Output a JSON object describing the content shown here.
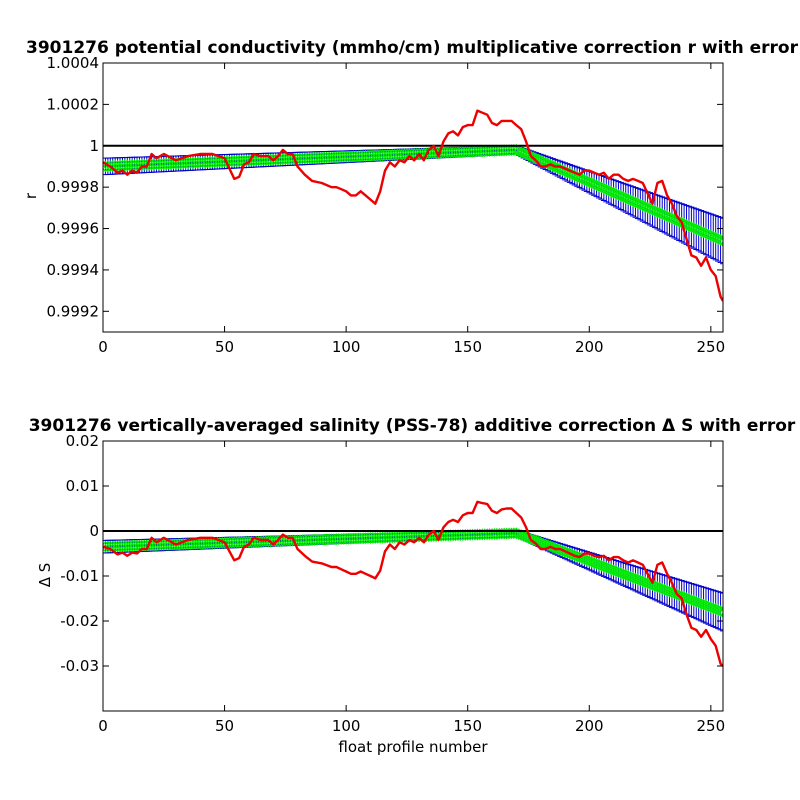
{
  "charts": [
    {
      "type": "line",
      "title": "3901276 potential conductivity (mmho/cm) multiplicative correction r with error",
      "xlabel": "",
      "ylabel": "r",
      "xlim": [
        0,
        255
      ],
      "ylim": [
        0.9991,
        1.0004
      ],
      "xticks": [
        0,
        50,
        100,
        150,
        200,
        250
      ],
      "yticks": [
        0.9992,
        0.9994,
        0.9996,
        0.9998,
        1,
        1.0002,
        1.0004
      ],
      "ytick_labels": [
        "0.9992",
        "0.9994",
        "0.9996",
        "0.9998",
        "1",
        "1.0002",
        "1.0004"
      ],
      "reference_line": 1,
      "colors": {
        "red": "#ee0000",
        "fit": "#00ee00",
        "error": "#0000cc",
        "reference": "#000000"
      },
      "fit_segments": [
        {
          "x0": 0,
          "y0": 0.9999,
          "x1": 170,
          "y1": 0.99998
        },
        {
          "x0": 170,
          "y0": 0.99998,
          "x1": 255,
          "y1": 0.99954
        }
      ],
      "error_segments": [
        {
          "x0": 0,
          "e0": 4e-05,
          "x1": 170,
          "e1": 2e-05
        },
        {
          "x0": 170,
          "e0": 2e-05,
          "x1": 255,
          "e1": 0.00011
        }
      ],
      "red_series": {
        "x": [
          0,
          3,
          6,
          8,
          10,
          12,
          14,
          16,
          18,
          20,
          22,
          25,
          30,
          35,
          40,
          45,
          50,
          52,
          54,
          56,
          58,
          60,
          62,
          65,
          68,
          70,
          72,
          74,
          76,
          78,
          80,
          83,
          86,
          90,
          94,
          96,
          98,
          100,
          102,
          104,
          106,
          108,
          110,
          112,
          114,
          116,
          118,
          120,
          122,
          124,
          126,
          128,
          130,
          132,
          134,
          136,
          138,
          140,
          142,
          144,
          146,
          148,
          150,
          152,
          154,
          156,
          158,
          160,
          162,
          164,
          166,
          168,
          170,
          172,
          174,
          176,
          178,
          180,
          182,
          184,
          186,
          188,
          190,
          192,
          194,
          196,
          198,
          200,
          202,
          204,
          206,
          208,
          210,
          212,
          214,
          216,
          218,
          220,
          222,
          224,
          226,
          228,
          230,
          232,
          234,
          236,
          238,
          240,
          242,
          244,
          246,
          248,
          250,
          252,
          254,
          255
        ],
        "y": [
          0.99992,
          0.9999,
          0.99987,
          0.99988,
          0.99986,
          0.99988,
          0.99987,
          0.9999,
          0.9999,
          0.99996,
          0.99994,
          0.99996,
          0.99993,
          0.99995,
          0.99996,
          0.99996,
          0.99994,
          0.99989,
          0.99984,
          0.99985,
          0.99991,
          0.99992,
          0.99996,
          0.99995,
          0.99995,
          0.99993,
          0.99995,
          0.99998,
          0.99996,
          0.99996,
          0.9999,
          0.99986,
          0.99983,
          0.99982,
          0.9998,
          0.9998,
          0.99979,
          0.99978,
          0.99976,
          0.99976,
          0.99978,
          0.99976,
          0.99974,
          0.99972,
          0.99978,
          0.99988,
          0.99992,
          0.9999,
          0.99993,
          0.99992,
          0.99995,
          0.99993,
          0.99996,
          0.99993,
          0.99998,
          1.0,
          0.99995,
          1.00002,
          1.00006,
          1.00007,
          1.00005,
          1.00009,
          1.0001,
          1.0001,
          1.00017,
          1.00016,
          1.00015,
          1.00011,
          1.0001,
          1.00012,
          1.00012,
          1.00012,
          1.0001,
          1.00008,
          1.00002,
          0.99995,
          0.99993,
          0.9999,
          0.9999,
          0.99991,
          0.9999,
          0.9999,
          0.99989,
          0.99988,
          0.99987,
          0.99986,
          0.99988,
          0.99988,
          0.99987,
          0.99986,
          0.99987,
          0.99984,
          0.99986,
          0.99986,
          0.99984,
          0.99983,
          0.99984,
          0.99983,
          0.99982,
          0.99977,
          0.99972,
          0.99982,
          0.99983,
          0.99976,
          0.99972,
          0.99966,
          0.99963,
          0.99955,
          0.99947,
          0.99946,
          0.99942,
          0.99946,
          0.9994,
          0.99937,
          0.99927,
          0.99925
        ]
      }
    },
    {
      "type": "line",
      "title": "3901276 vertically-averaged salinity (PSS-78) additive correction Δ S with error",
      "xlabel": "float profile number",
      "ylabel": "Δ S",
      "xlim": [
        0,
        255
      ],
      "ylim": [
        -0.04,
        0.02
      ],
      "xticks": [
        0,
        50,
        100,
        150,
        200,
        250
      ],
      "yticks": [
        -0.03,
        -0.02,
        -0.01,
        0,
        0.01,
        0.02
      ],
      "ytick_labels": [
        "-0.03",
        "-0.02",
        "-0.01",
        "0",
        "0.01",
        "0.02"
      ],
      "reference_line": 0,
      "colors": {
        "red": "#ee0000",
        "fit": "#00ee00",
        "error": "#0000cc",
        "reference": "#000000"
      },
      "fit_segments": [
        {
          "x0": 0,
          "y0": -0.0035,
          "x1": 170,
          "y1": -0.0005
        },
        {
          "x0": 170,
          "y0": -0.0005,
          "x1": 255,
          "y1": -0.018
        }
      ],
      "error_segments": [
        {
          "x0": 0,
          "e0": 0.0014,
          "x1": 170,
          "e1": 0.0007
        },
        {
          "x0": 170,
          "e0": 0.0007,
          "x1": 255,
          "e1": 0.0042
        }
      ],
      "red_series": {
        "x": [
          0,
          3,
          6,
          8,
          10,
          12,
          14,
          16,
          18,
          20,
          22,
          25,
          30,
          35,
          40,
          45,
          50,
          52,
          54,
          56,
          58,
          60,
          62,
          65,
          68,
          70,
          72,
          74,
          76,
          78,
          80,
          83,
          86,
          90,
          94,
          96,
          98,
          100,
          102,
          104,
          106,
          108,
          110,
          112,
          114,
          116,
          118,
          120,
          122,
          124,
          126,
          128,
          130,
          132,
          134,
          136,
          138,
          140,
          142,
          144,
          146,
          148,
          150,
          152,
          154,
          156,
          158,
          160,
          162,
          164,
          166,
          168,
          170,
          172,
          174,
          176,
          178,
          180,
          182,
          184,
          186,
          188,
          190,
          192,
          194,
          196,
          198,
          200,
          202,
          204,
          206,
          208,
          210,
          212,
          214,
          216,
          218,
          220,
          222,
          224,
          226,
          228,
          230,
          232,
          234,
          236,
          238,
          240,
          242,
          244,
          246,
          248,
          250,
          252,
          254,
          255
        ],
        "y": [
          -0.0035,
          -0.004,
          -0.0052,
          -0.0048,
          -0.0055,
          -0.0048,
          -0.005,
          -0.004,
          -0.004,
          -0.0015,
          -0.0025,
          -0.0015,
          -0.003,
          -0.002,
          -0.0015,
          -0.0015,
          -0.0025,
          -0.0045,
          -0.0065,
          -0.006,
          -0.0035,
          -0.003,
          -0.0015,
          -0.002,
          -0.002,
          -0.003,
          -0.002,
          -0.0008,
          -0.0015,
          -0.0015,
          -0.004,
          -0.0055,
          -0.0068,
          -0.0072,
          -0.008,
          -0.008,
          -0.0085,
          -0.009,
          -0.0095,
          -0.0095,
          -0.009,
          -0.0095,
          -0.01,
          -0.0105,
          -0.0088,
          -0.0045,
          -0.003,
          -0.004,
          -0.0025,
          -0.003,
          -0.002,
          -0.0025,
          -0.0015,
          -0.0025,
          -0.0008,
          0.0,
          -0.002,
          0.0008,
          0.002,
          0.0025,
          0.002,
          0.0035,
          0.004,
          0.004,
          0.0065,
          0.0062,
          0.006,
          0.0045,
          0.004,
          0.0048,
          0.005,
          0.005,
          0.004,
          0.003,
          0.0008,
          -0.002,
          -0.0028,
          -0.004,
          -0.004,
          -0.0035,
          -0.004,
          -0.004,
          -0.0045,
          -0.005,
          -0.0055,
          -0.0058,
          -0.005,
          -0.005,
          -0.0055,
          -0.0058,
          -0.0055,
          -0.0065,
          -0.0058,
          -0.0058,
          -0.0065,
          -0.007,
          -0.0065,
          -0.007,
          -0.0075,
          -0.0095,
          -0.0115,
          -0.0075,
          -0.007,
          -0.0095,
          -0.0115,
          -0.014,
          -0.015,
          -0.0185,
          -0.0215,
          -0.022,
          -0.0235,
          -0.022,
          -0.024,
          -0.0255,
          -0.0295,
          -0.03
        ]
      }
    }
  ]
}
